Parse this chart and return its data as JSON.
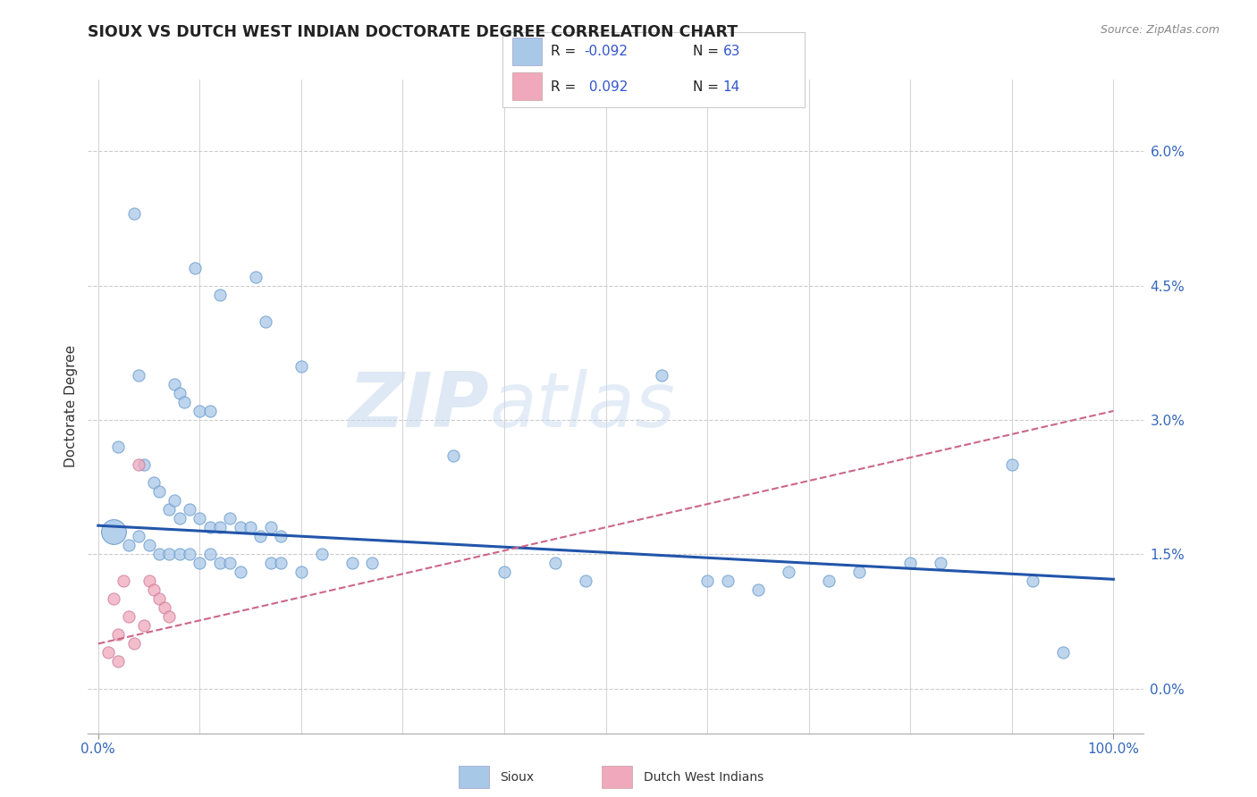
{
  "title": "SIOUX VS DUTCH WEST INDIAN DOCTORATE DEGREE CORRELATION CHART",
  "source": "Source: ZipAtlas.com",
  "ylabel": "Doctorate Degree",
  "ytick_values": [
    0.0,
    1.5,
    3.0,
    4.5,
    6.0
  ],
  "xlim": [
    -1.0,
    103.0
  ],
  "ylim": [
    -0.5,
    6.8
  ],
  "legend_r_sioux": "R = -0.092",
  "legend_n_sioux": "N = 63",
  "legend_r_dutch": "R =  0.092",
  "legend_n_dutch": "N = 14",
  "sioux_color": "#A8C8E8",
  "dutch_color": "#F0A8BC",
  "sioux_edge_color": "#6699CC",
  "dutch_edge_color": "#CC7799",
  "sioux_line_color": "#2255AA",
  "dutch_line_color": "#CC6688",
  "watermark_zip": "ZIP",
  "watermark_atlas": "atlas",
  "background_color": "#FFFFFF",
  "grid_color": "#CCCCCC",
  "sioux_points": [
    [
      3.5,
      5.3
    ],
    [
      9.5,
      4.7
    ],
    [
      12.0,
      4.4
    ],
    [
      15.5,
      4.6
    ],
    [
      16.5,
      4.1
    ],
    [
      20.0,
      3.6
    ],
    [
      4.0,
      3.5
    ],
    [
      7.5,
      3.4
    ],
    [
      8.0,
      3.3
    ],
    [
      8.5,
      3.2
    ],
    [
      10.0,
      3.1
    ],
    [
      11.0,
      3.1
    ],
    [
      2.0,
      2.7
    ],
    [
      4.5,
      2.5
    ],
    [
      5.5,
      2.3
    ],
    [
      6.0,
      2.2
    ],
    [
      7.0,
      2.0
    ],
    [
      7.5,
      2.1
    ],
    [
      8.0,
      1.9
    ],
    [
      9.0,
      2.0
    ],
    [
      10.0,
      1.9
    ],
    [
      11.0,
      1.8
    ],
    [
      12.0,
      1.8
    ],
    [
      13.0,
      1.9
    ],
    [
      14.0,
      1.8
    ],
    [
      15.0,
      1.8
    ],
    [
      16.0,
      1.7
    ],
    [
      17.0,
      1.8
    ],
    [
      18.0,
      1.7
    ],
    [
      3.0,
      1.6
    ],
    [
      4.0,
      1.7
    ],
    [
      5.0,
      1.6
    ],
    [
      6.0,
      1.5
    ],
    [
      7.0,
      1.5
    ],
    [
      8.0,
      1.5
    ],
    [
      9.0,
      1.5
    ],
    [
      10.0,
      1.4
    ],
    [
      11.0,
      1.5
    ],
    [
      12.0,
      1.4
    ],
    [
      13.0,
      1.4
    ],
    [
      14.0,
      1.3
    ],
    [
      17.0,
      1.4
    ],
    [
      18.0,
      1.4
    ],
    [
      20.0,
      1.3
    ],
    [
      22.0,
      1.5
    ],
    [
      25.0,
      1.4
    ],
    [
      27.0,
      1.4
    ],
    [
      35.0,
      2.6
    ],
    [
      40.0,
      1.3
    ],
    [
      45.0,
      1.4
    ],
    [
      48.0,
      1.2
    ],
    [
      55.5,
      3.5
    ],
    [
      60.0,
      1.2
    ],
    [
      62.0,
      1.2
    ],
    [
      65.0,
      1.1
    ],
    [
      68.0,
      1.3
    ],
    [
      72.0,
      1.2
    ],
    [
      75.0,
      1.3
    ],
    [
      80.0,
      1.4
    ],
    [
      83.0,
      1.4
    ],
    [
      90.0,
      2.5
    ],
    [
      92.0,
      1.2
    ],
    [
      95.0,
      0.4
    ]
  ],
  "dutch_points": [
    [
      1.5,
      1.0
    ],
    [
      2.5,
      1.2
    ],
    [
      3.0,
      0.8
    ],
    [
      4.0,
      2.5
    ],
    [
      5.0,
      1.2
    ],
    [
      5.5,
      1.1
    ],
    [
      6.0,
      1.0
    ],
    [
      6.5,
      0.9
    ],
    [
      7.0,
      0.8
    ],
    [
      2.0,
      0.6
    ],
    [
      3.5,
      0.5
    ],
    [
      4.5,
      0.7
    ],
    [
      1.0,
      0.4
    ],
    [
      2.0,
      0.3
    ]
  ],
  "large_sioux_x": 1.5,
  "large_sioux_y": 1.75,
  "large_sioux_size": 400,
  "sioux_trend_x0": 0,
  "sioux_trend_y0": 1.82,
  "sioux_trend_x1": 100,
  "sioux_trend_y1": 1.22,
  "dutch_trend_x0": 0,
  "dutch_trend_y0": 0.5,
  "dutch_trend_x1": 100,
  "dutch_trend_y1": 3.1
}
